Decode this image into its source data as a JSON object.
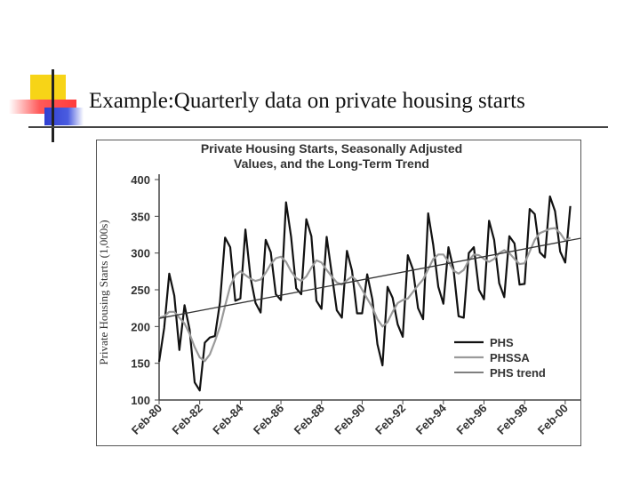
{
  "slide": {
    "title": "Example:Quarterly data on private housing starts",
    "colors": {
      "accent_yellow": "#f7d417",
      "accent_red": "#ff4040",
      "accent_blue": "#2f3fd1",
      "accent_bar": "#222222"
    }
  },
  "chart_data": {
    "type": "line",
    "title_lines": [
      "Private Housing Starts, Seasonally Adjusted",
      "Values, and the Long-Term Trend"
    ],
    "xlabel": "",
    "ylabel": "Private Housing Starts (1,000s)",
    "ylim": [
      100,
      400
    ],
    "yticks": [
      100,
      150,
      200,
      250,
      300,
      350,
      400
    ],
    "xlim": [
      1980.0,
      2000.75
    ],
    "xticks": [
      {
        "label": "Feb-80",
        "x": 1980.0
      },
      {
        "label": "Feb-82",
        "x": 1982.0
      },
      {
        "label": "Feb-84",
        "x": 1984.0
      },
      {
        "label": "Feb-86",
        "x": 1986.0
      },
      {
        "label": "Feb-88",
        "x": 1988.0
      },
      {
        "label": "Feb-90",
        "x": 1990.0
      },
      {
        "label": "Feb-92",
        "x": 1992.0
      },
      {
        "label": "Feb-94",
        "x": 1994.0
      },
      {
        "label": "Feb-96",
        "x": 1996.0
      },
      {
        "label": "Feb-98",
        "x": 1998.0
      },
      {
        "label": "Feb-00",
        "x": 2000.0
      }
    ],
    "grid": false,
    "legend_position": "bottom-right",
    "series": [
      {
        "name": "PHS",
        "color": "#111111",
        "x": [
          1980.0,
          1980.25,
          1980.5,
          1980.75,
          1981.0,
          1981.25,
          1981.5,
          1981.75,
          1982.0,
          1982.25,
          1982.5,
          1982.75,
          1983.0,
          1983.25,
          1983.5,
          1983.75,
          1984.0,
          1984.25,
          1984.5,
          1984.75,
          1985.0,
          1985.25,
          1985.5,
          1985.75,
          1986.0,
          1986.25,
          1986.5,
          1986.75,
          1987.0,
          1987.25,
          1987.5,
          1987.75,
          1988.0,
          1988.25,
          1988.5,
          1988.75,
          1989.0,
          1989.25,
          1989.5,
          1989.75,
          1990.0,
          1990.25,
          1990.5,
          1990.75,
          1991.0,
          1991.25,
          1991.5,
          1991.75,
          1992.0,
          1992.25,
          1992.5,
          1992.75,
          1993.0,
          1993.25,
          1993.5,
          1993.75,
          1994.0,
          1994.25,
          1994.5,
          1994.75,
          1995.0,
          1995.25,
          1995.5,
          1995.75,
          1996.0,
          1996.25,
          1996.5,
          1996.75,
          1997.0,
          1997.25,
          1997.5,
          1997.75,
          1998.0,
          1998.25,
          1998.5,
          1998.75,
          1999.0,
          1999.25,
          1999.5,
          1999.75,
          2000.0,
          2000.25
        ],
        "values": [
          152,
          198,
          272,
          242,
          168,
          229,
          196,
          124,
          113,
          178,
          185,
          187,
          233,
          321,
          308,
          235,
          238,
          332,
          267,
          232,
          219,
          318,
          301,
          244,
          236,
          369,
          322,
          252,
          244,
          346,
          323,
          235,
          224,
          322,
          272,
          222,
          212,
          303,
          276,
          218,
          218,
          271,
          237,
          176,
          147,
          254,
          239,
          203,
          186,
          297,
          278,
          225,
          210,
          354,
          311,
          254,
          231,
          308,
          278,
          214,
          212,
          300,
          308,
          250,
          237,
          344,
          318,
          259,
          240,
          323,
          313,
          257,
          258,
          360,
          353,
          301,
          294,
          377,
          357,
          302,
          287,
          364
        ]
      },
      {
        "name": "PHSSA",
        "color": "#9a9a9a",
        "x": [
          1980.0,
          1980.25,
          1980.5,
          1980.75,
          1981.0,
          1981.25,
          1981.5,
          1981.75,
          1982.0,
          1982.25,
          1982.5,
          1982.75,
          1983.0,
          1983.25,
          1983.5,
          1983.75,
          1984.0,
          1984.25,
          1984.5,
          1984.75,
          1985.0,
          1985.25,
          1985.5,
          1985.75,
          1986.0,
          1986.25,
          1986.5,
          1986.75,
          1987.0,
          1987.25,
          1987.5,
          1987.75,
          1988.0,
          1988.25,
          1988.5,
          1988.75,
          1989.0,
          1989.25,
          1989.5,
          1989.75,
          1990.0,
          1990.25,
          1990.5,
          1990.75,
          1991.0,
          1991.25,
          1991.5,
          1991.75,
          1992.0,
          1992.25,
          1992.5,
          1992.75,
          1993.0,
          1993.25,
          1993.5,
          1993.75,
          1994.0,
          1994.25,
          1994.5,
          1994.75,
          1995.0,
          1995.25,
          1995.5,
          1995.75,
          1996.0,
          1996.25,
          1996.5,
          1996.75,
          1997.0,
          1997.25,
          1997.5,
          1997.75,
          1998.0,
          1998.25,
          1998.5,
          1998.75,
          1999.0,
          1999.25,
          1999.5,
          1999.75,
          2000.0,
          2000.25
        ],
        "values": [
          212,
          214,
          220,
          220,
          212,
          204,
          190,
          172,
          158,
          153,
          162,
          180,
          200,
          228,
          255,
          270,
          275,
          270,
          265,
          262,
          264,
          273,
          285,
          293,
          295,
          288,
          275,
          266,
          262,
          268,
          280,
          290,
          287,
          277,
          268,
          260,
          257,
          263,
          268,
          262,
          250,
          238,
          226,
          210,
          200,
          206,
          220,
          232,
          236,
          238,
          247,
          256,
          264,
          278,
          292,
          298,
          298,
          288,
          276,
          272,
          277,
          290,
          298,
          297,
          292,
          288,
          292,
          300,
          304,
          300,
          292,
          285,
          286,
          302,
          318,
          327,
          330,
          333,
          334,
          327,
          317,
          321
        ]
      },
      {
        "name": "PHS trend",
        "color": "#333333",
        "x": [
          1980.0,
          2000.75
        ],
        "values": [
          211,
          320
        ]
      }
    ]
  }
}
